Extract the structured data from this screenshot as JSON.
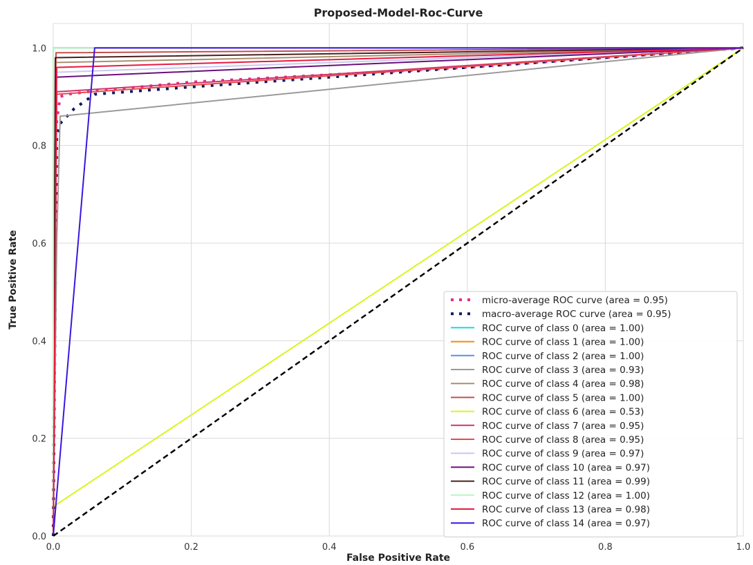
{
  "chart_data": {
    "type": "line",
    "title": "Proposed-Model-Roc-Curve",
    "xlabel": "False Positive Rate",
    "ylabel": "True Positive Rate",
    "xlim": [
      0.0,
      1.0
    ],
    "ylim": [
      0.0,
      1.05
    ],
    "xticks": [
      "0.0",
      "0.2",
      "0.4",
      "0.6",
      "0.8",
      "1.0"
    ],
    "yticks": [
      "0.0",
      "0.2",
      "0.4",
      "0.6",
      "0.8",
      "1.0"
    ],
    "grid": true,
    "legend_position": "lower-right",
    "diagonal": {
      "x": [
        0,
        1
      ],
      "y": [
        0,
        1
      ],
      "color": "#000000",
      "style": "dashed"
    },
    "series": [
      {
        "name": "micro-average ROC curve (area = 0.95)",
        "color": "#e7298a",
        "style": "dotted",
        "x": [
          0,
          0.002,
          0.005,
          0.01,
          0.02,
          0.05,
          0.2,
          0.4,
          0.6,
          0.8,
          1.0
        ],
        "y": [
          0,
          0.6,
          0.85,
          0.9,
          0.905,
          0.91,
          0.93,
          0.945,
          0.96,
          0.98,
          1.0
        ]
      },
      {
        "name": "macro-average ROC curve (area = 0.95)",
        "color": "#0b1a5e",
        "style": "dotted",
        "x": [
          0,
          0.005,
          0.01,
          0.02,
          0.03,
          0.045,
          0.06,
          0.2,
          0.4,
          0.6,
          0.8,
          1.0
        ],
        "y": [
          0,
          0.82,
          0.845,
          0.86,
          0.875,
          0.89,
          0.905,
          0.92,
          0.94,
          0.96,
          0.98,
          1.0
        ]
      },
      {
        "name": "ROC curve of class 0 (area = 1.00)",
        "color": "#17d6e0",
        "style": "solid",
        "x": [
          0,
          0,
          1
        ],
        "y": [
          0,
          1,
          1
        ]
      },
      {
        "name": "ROC curve of class 1 (area = 1.00)",
        "color": "#f28a0c",
        "style": "solid",
        "x": [
          0,
          0,
          1
        ],
        "y": [
          0,
          1,
          1
        ]
      },
      {
        "name": "ROC curve of class 2 (area = 1.00)",
        "color": "#5b8fe0",
        "style": "solid",
        "x": [
          0,
          0,
          1
        ],
        "y": [
          0,
          1,
          1
        ]
      },
      {
        "name": "ROC curve of class 3 (area = 0.93)",
        "color": "#9a9a9a",
        "style": "solid",
        "x": [
          0,
          0.005,
          0.01,
          1.0
        ],
        "y": [
          0,
          0.6,
          0.86,
          1.0
        ]
      },
      {
        "name": "ROC curve of class 4 (area = 0.98)",
        "color": "#a88f6f",
        "style": "solid",
        "x": [
          0,
          0.003,
          1.0
        ],
        "y": [
          0,
          0.97,
          1.0
        ]
      },
      {
        "name": "ROC curve of class 5 (area = 1.00)",
        "color": "#c0504d",
        "style": "solid",
        "x": [
          0,
          0.004,
          1.0
        ],
        "y": [
          0,
          0.99,
          1.0
        ]
      },
      {
        "name": "ROC curve of class 6 (area = 0.53)",
        "color": "#d9f51c",
        "style": "solid",
        "x": [
          0,
          0,
          1.0
        ],
        "y": [
          0,
          0.06,
          1.0
        ]
      },
      {
        "name": "ROC curve of class 7 (area = 0.95)",
        "color": "#d0336c",
        "style": "solid",
        "x": [
          0,
          0.005,
          1.0
        ],
        "y": [
          0,
          0.91,
          1.0
        ]
      },
      {
        "name": "ROC curve of class 8 (area = 0.95)",
        "color": "#e8494d",
        "style": "solid",
        "x": [
          0,
          0.005,
          1.0
        ],
        "y": [
          0,
          0.905,
          1.0
        ]
      },
      {
        "name": "ROC curve of class 9 (area = 0.97)",
        "color": "#c8c8f2",
        "style": "solid",
        "x": [
          0,
          0.004,
          1.0
        ],
        "y": [
          0,
          0.95,
          1.0
        ]
      },
      {
        "name": "ROC curve of class 10 (area = 0.97)",
        "color": "#6a0f7a",
        "style": "solid",
        "x": [
          0,
          0.004,
          1.0
        ],
        "y": [
          0,
          0.94,
          1.0
        ]
      },
      {
        "name": "ROC curve of class 11 (area = 0.99)",
        "color": "#4a1f1f",
        "style": "solid",
        "x": [
          0,
          0.003,
          1.0
        ],
        "y": [
          0,
          0.98,
          1.0
        ]
      },
      {
        "name": "ROC curve of class 12 (area = 1.00)",
        "color": "#b8f5c0",
        "style": "solid",
        "x": [
          0,
          0,
          1.0
        ],
        "y": [
          0,
          1.0,
          1.0
        ]
      },
      {
        "name": "ROC curve of class 13 (area = 0.98)",
        "color": "#e8193f",
        "style": "solid",
        "x": [
          0,
          0.005,
          1.0
        ],
        "y": [
          0,
          0.96,
          1.0
        ]
      },
      {
        "name": "ROC curve of class 14 (area = 0.97)",
        "color": "#3b14e0",
        "style": "solid",
        "x": [
          0,
          0.06,
          1.0
        ],
        "y": [
          0,
          1.0,
          1.0
        ]
      }
    ]
  }
}
